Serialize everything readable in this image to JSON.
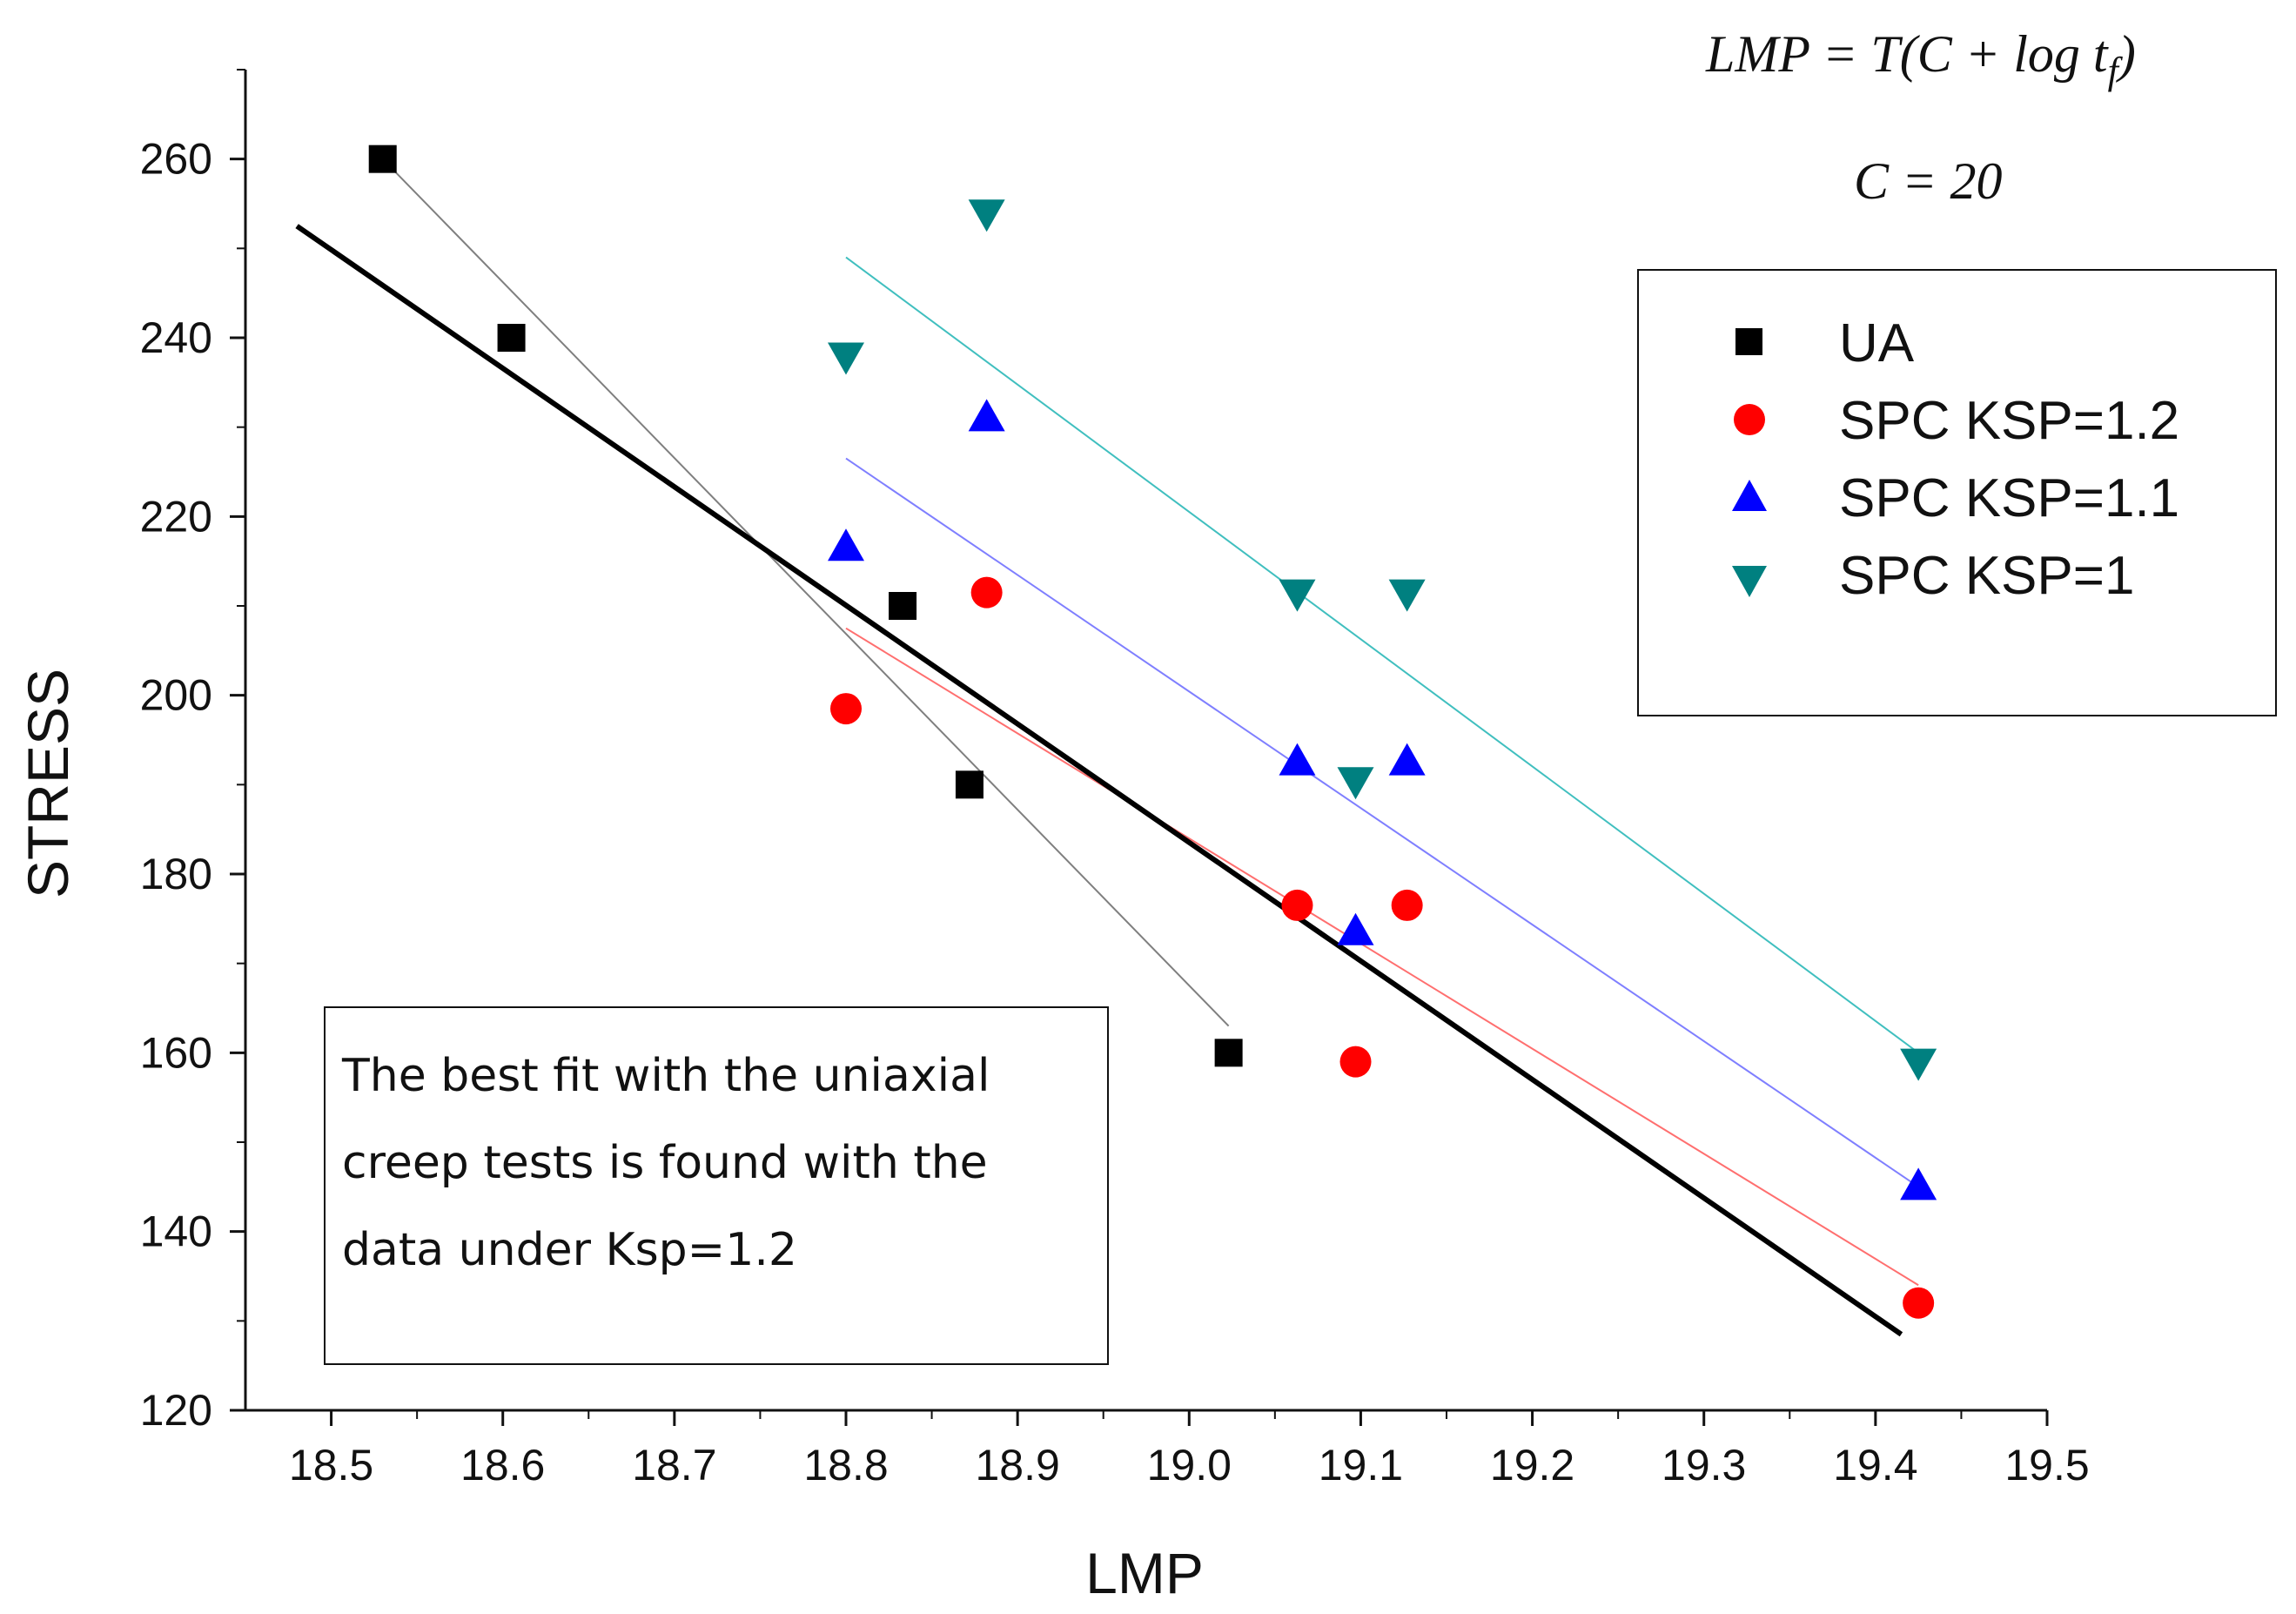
{
  "chart_data": {
    "type": "scatter",
    "title": "",
    "xlabel": "LMP",
    "ylabel": "STRESS",
    "xlim": [
      18.45,
      19.5
    ],
    "ylim": [
      120,
      270
    ],
    "xticks": [
      18.5,
      18.6,
      18.7,
      18.8,
      18.9,
      19.0,
      19.1,
      19.2,
      19.3,
      19.4,
      19.5
    ],
    "yticks": [
      120,
      140,
      160,
      180,
      200,
      220,
      240,
      260
    ],
    "grid": false,
    "legend_position": "top-right",
    "series": [
      {
        "name": "UA",
        "marker": "square",
        "color": "#000000",
        "x": [
          18.53,
          18.605,
          18.833,
          18.872,
          19.023
        ],
        "y": [
          260,
          240,
          210,
          190,
          160
        ],
        "fit": {
          "x": [
            18.53,
            19.023
          ],
          "y": [
            260,
            163
          ],
          "color": "#7f7f7f"
        }
      },
      {
        "name": "SPC KSP=1.2",
        "marker": "circle",
        "color": "#ff0000",
        "x": [
          18.8,
          18.882,
          19.063,
          19.097,
          19.127,
          19.425
        ],
        "y": [
          198.5,
          211.5,
          176.5,
          159,
          176.5,
          132
        ],
        "fit": {
          "x": [
            18.8,
            19.425
          ],
          "y": [
            207.5,
            134
          ],
          "color": "#ff6f6f"
        }
      },
      {
        "name": "SPC KSP=1.1",
        "marker": "triangle-up",
        "color": "#0000ff",
        "x": [
          18.8,
          18.882,
          19.063,
          19.097,
          19.127,
          19.425
        ],
        "y": [
          216.5,
          231,
          192.5,
          173.5,
          192.5,
          145
        ],
        "fit": {
          "x": [
            18.8,
            19.425
          ],
          "y": [
            226.5,
            145
          ],
          "color": "#7f7fff"
        }
      },
      {
        "name": "SPC KSP=1",
        "marker": "triangle-down",
        "color": "#008080",
        "x": [
          18.8,
          18.882,
          19.063,
          19.097,
          19.127,
          19.425
        ],
        "y": [
          238,
          254,
          211.5,
          190.5,
          211.5,
          159
        ],
        "fit": {
          "x": [
            18.8,
            19.425
          ],
          "y": [
            249,
            160
          ],
          "color": "#40bfbf"
        }
      }
    ],
    "overall_fit": {
      "x": [
        18.48,
        19.415
      ],
      "y": [
        252.5,
        128.5
      ],
      "color": "#000000"
    },
    "annotations": {
      "formula": "LMP = T(C + log tf)",
      "constant": "C = 20",
      "note_lines": [
        "The best fit with the uniaxial",
        "creep tests is found with the",
        "data under Ksp=1.2"
      ]
    }
  }
}
